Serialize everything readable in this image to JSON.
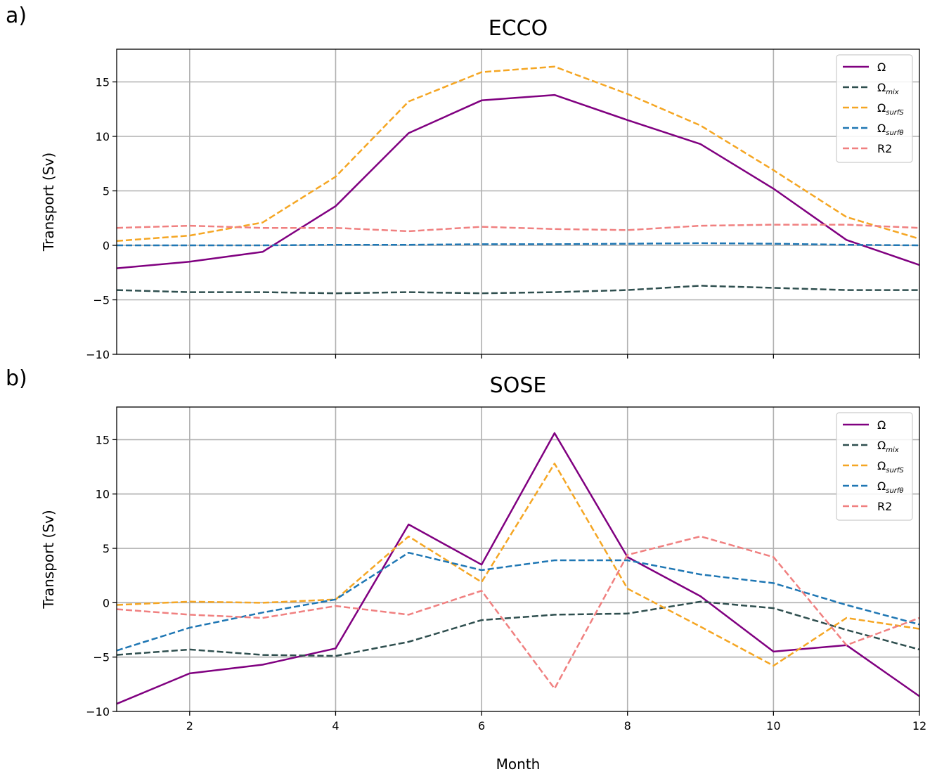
{
  "figure": {
    "panel_labels": [
      "a)",
      "b)"
    ],
    "xlabel": "Month"
  },
  "chart_data": [
    {
      "type": "line",
      "title": "ECCO",
      "xlabel": "",
      "ylabel": "Transport (Sv)",
      "xlim": [
        1,
        12
      ],
      "ylim": [
        -10,
        18
      ],
      "xticks": [
        2,
        4,
        6,
        8,
        10,
        12
      ],
      "xtick_labels_shown": false,
      "yticks": [
        -10,
        -5,
        0,
        5,
        10,
        15
      ],
      "grid": true,
      "legend_position": "top-right",
      "x": [
        1,
        2,
        3,
        4,
        5,
        6,
        7,
        8,
        9,
        10,
        11,
        12
      ],
      "series": [
        {
          "name": "Ω",
          "sub": "",
          "color": "#800080",
          "dashed": false,
          "values": [
            -2.1,
            -1.5,
            -0.6,
            3.6,
            10.3,
            13.3,
            13.8,
            11.5,
            9.3,
            5.2,
            0.5,
            -1.8
          ]
        },
        {
          "name": "Ω",
          "sub": "mix",
          "color": "#2f4f4f",
          "dashed": true,
          "values": [
            -4.1,
            -4.3,
            -4.3,
            -4.4,
            -4.3,
            -4.4,
            -4.3,
            -4.1,
            -3.7,
            -3.9,
            -4.1,
            -4.1
          ]
        },
        {
          "name": "Ω",
          "sub": "surfS",
          "color": "#f5a623",
          "dashed": true,
          "values": [
            0.4,
            0.9,
            2.1,
            6.3,
            13.2,
            15.9,
            16.4,
            13.9,
            11.0,
            6.9,
            2.6,
            0.6
          ]
        },
        {
          "name": "Ω",
          "sub": "surfθ",
          "color": "#1f77b4",
          "dashed": true,
          "values": [
            0.0,
            0.0,
            0.0,
            0.05,
            0.05,
            0.1,
            0.1,
            0.15,
            0.2,
            0.15,
            0.05,
            0.0
          ]
        },
        {
          "name": "R2",
          "sub": "",
          "color": "#f08080",
          "dashed": true,
          "values": [
            1.6,
            1.8,
            1.6,
            1.6,
            1.3,
            1.7,
            1.5,
            1.4,
            1.8,
            1.9,
            1.9,
            1.6
          ]
        }
      ]
    },
    {
      "type": "line",
      "title": "SOSE",
      "xlabel": "Month",
      "ylabel": "Transport (Sv)",
      "xlim": [
        1,
        12
      ],
      "ylim": [
        -10,
        18
      ],
      "xticks": [
        2,
        4,
        6,
        8,
        10,
        12
      ],
      "xtick_labels_shown": true,
      "yticks": [
        -10,
        -5,
        0,
        5,
        10,
        15
      ],
      "grid": true,
      "legend_position": "top-right",
      "x": [
        1,
        2,
        3,
        4,
        5,
        6,
        7,
        8,
        9,
        10,
        11,
        12
      ],
      "series": [
        {
          "name": "Ω",
          "sub": "",
          "color": "#800080",
          "dashed": false,
          "values": [
            -9.3,
            -6.5,
            -5.7,
            -4.2,
            7.2,
            3.5,
            15.6,
            4.2,
            0.6,
            -4.5,
            -3.9,
            -8.6
          ]
        },
        {
          "name": "Ω",
          "sub": "mix",
          "color": "#2f4f4f",
          "dashed": true,
          "values": [
            -4.8,
            -4.3,
            -4.8,
            -4.9,
            -3.6,
            -1.6,
            -1.1,
            -1.0,
            0.1,
            -0.5,
            -2.5,
            -4.3
          ]
        },
        {
          "name": "Ω",
          "sub": "surfS",
          "color": "#f5a623",
          "dashed": true,
          "values": [
            -0.2,
            0.1,
            0.0,
            0.3,
            6.1,
            1.9,
            12.8,
            1.3,
            -2.2,
            -5.8,
            -1.4,
            -2.4
          ]
        },
        {
          "name": "Ω",
          "sub": "surfθ",
          "color": "#1f77b4",
          "dashed": true,
          "values": [
            -4.4,
            -2.3,
            -0.9,
            0.3,
            4.6,
            3.0,
            3.9,
            3.9,
            2.6,
            1.8,
            -0.2,
            -2.0
          ]
        },
        {
          "name": "R2",
          "sub": "",
          "color": "#f08080",
          "dashed": true,
          "values": [
            -0.6,
            -1.1,
            -1.4,
            -0.3,
            -1.1,
            1.1,
            -7.9,
            4.4,
            6.1,
            4.2,
            -3.9,
            -1.4
          ]
        }
      ]
    }
  ]
}
